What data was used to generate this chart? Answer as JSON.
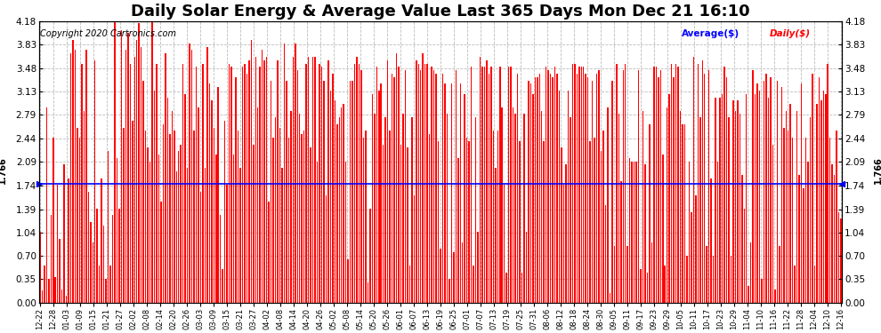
{
  "title": "Daily Solar Energy & Average Value Last 365 Days Mon Dec 21 16:10",
  "copyright": "Copyright 2020 Cartronics.com",
  "average_label": "Average($)",
  "daily_label": "Daily($)",
  "average_value": 1.766,
  "average_color": "#0000ff",
  "bar_color": "#ff0000",
  "ylim": [
    0.0,
    4.18
  ],
  "yticks": [
    0.0,
    0.35,
    0.7,
    1.04,
    1.39,
    1.74,
    2.09,
    2.44,
    2.79,
    3.13,
    3.48,
    3.83,
    4.18
  ],
  "background_color": "#ffffff",
  "grid_color": "#aaaaaa",
  "title_fontsize": 13,
  "copyright_fontsize": 7,
  "x_labels": [
    "12-22",
    "12-28",
    "01-03",
    "01-09",
    "01-15",
    "01-21",
    "01-27",
    "02-02",
    "02-08",
    "02-14",
    "02-20",
    "02-26",
    "03-03",
    "03-09",
    "03-15",
    "03-21",
    "03-27",
    "04-02",
    "04-08",
    "04-14",
    "04-20",
    "04-26",
    "05-02",
    "05-08",
    "05-14",
    "05-20",
    "05-26",
    "06-01",
    "06-07",
    "06-13",
    "06-19",
    "06-25",
    "07-01",
    "07-07",
    "07-13",
    "07-19",
    "07-25",
    "07-31",
    "08-06",
    "08-12",
    "08-18",
    "08-24",
    "08-30",
    "09-05",
    "09-11",
    "09-17",
    "09-23",
    "09-29",
    "10-05",
    "10-11",
    "10-17",
    "10-23",
    "10-29",
    "11-04",
    "11-10",
    "11-16",
    "11-22",
    "11-28",
    "12-04",
    "12-10",
    "12-16"
  ],
  "bar_values": [
    1.05,
    0.18,
    0.55,
    2.9,
    0.35,
    1.3,
    2.45,
    0.38,
    1.75,
    0.95,
    0.2,
    2.05,
    0.1,
    1.85,
    3.7,
    3.9,
    3.75,
    2.6,
    2.45,
    3.55,
    2.85,
    3.75,
    1.65,
    1.2,
    0.9,
    3.6,
    1.4,
    0.55,
    1.85,
    1.15,
    0.35,
    2.25,
    0.55,
    1.3,
    4.18,
    2.15,
    1.4,
    4.05,
    2.6,
    3.75,
    4.0,
    3.55,
    2.7,
    3.65,
    3.9,
    4.15,
    3.8,
    3.3,
    2.55,
    2.3,
    2.1,
    4.2,
    3.15,
    3.55,
    2.2,
    1.5,
    2.65,
    3.7,
    3.05,
    2.5,
    2.85,
    2.55,
    1.95,
    2.25,
    2.35,
    3.55,
    3.1,
    2.0,
    3.85,
    3.75,
    2.55,
    3.5,
    2.9,
    1.65,
    3.55,
    2.0,
    3.8,
    3.25,
    3.0,
    2.6,
    2.2,
    3.2,
    1.3,
    0.5,
    2.7,
    1.75,
    3.55,
    3.5,
    2.2,
    3.35,
    2.55,
    2.0,
    3.5,
    3.55,
    3.4,
    3.6,
    3.9,
    2.35,
    3.65,
    2.9,
    3.5,
    3.75,
    3.6,
    3.65,
    1.5,
    3.3,
    2.45,
    2.75,
    3.6,
    2.6,
    2.0,
    3.85,
    3.3,
    2.45,
    2.85,
    3.65,
    3.85,
    3.45,
    2.8,
    2.5,
    2.55,
    3.55,
    3.65,
    2.3,
    3.65,
    3.65,
    2.1,
    3.55,
    3.5,
    3.3,
    1.6,
    3.6,
    3.15,
    3.4,
    3.0,
    2.65,
    2.75,
    2.9,
    2.95,
    2.1,
    0.65,
    3.3,
    3.3,
    3.55,
    3.65,
    3.55,
    3.45,
    2.45,
    2.55,
    0.3,
    1.4,
    3.1,
    2.8,
    3.5,
    3.15,
    3.25,
    2.35,
    2.75,
    3.6,
    2.55,
    3.4,
    3.35,
    3.7,
    3.5,
    2.35,
    2.8,
    3.45,
    2.3,
    0.55,
    2.75,
    1.6,
    3.6,
    3.55,
    3.45,
    3.7,
    3.55,
    3.55,
    2.5,
    3.5,
    3.45,
    3.4,
    2.4,
    0.8,
    3.4,
    3.25,
    2.8,
    0.35,
    3.25,
    0.75,
    3.45,
    2.15,
    3.25,
    0.9,
    3.1,
    2.45,
    2.4,
    3.5,
    0.55,
    2.75,
    1.05,
    3.65,
    3.5,
    3.5,
    3.6,
    3.4,
    3.5,
    2.55,
    2.0,
    2.55,
    3.5,
    2.9,
    1.75,
    0.45,
    3.5,
    3.5,
    2.9,
    2.8,
    3.4,
    2.4,
    0.45,
    2.8,
    1.05,
    3.3,
    3.25,
    3.1,
    3.35,
    3.35,
    3.4,
    2.85,
    2.4,
    3.5,
    3.45,
    3.4,
    3.35,
    3.5,
    3.4,
    3.15,
    2.3,
    1.75,
    2.05,
    3.15,
    2.75,
    3.55,
    3.55,
    3.4,
    3.5,
    3.5,
    3.5,
    3.4,
    3.35,
    2.4,
    3.3,
    2.45,
    3.4,
    3.45,
    2.25,
    2.55,
    1.45,
    2.9,
    0.15,
    3.3,
    0.85,
    3.55,
    2.8,
    1.8,
    3.45,
    3.55,
    0.85,
    2.15,
    2.1,
    2.1,
    2.1,
    3.45,
    0.5,
    2.85,
    2.05,
    0.45,
    2.65,
    0.9,
    3.5,
    3.5,
    3.35,
    3.45,
    2.2,
    0.55,
    2.9,
    3.1,
    3.55,
    3.35,
    3.55,
    3.5,
    2.85,
    2.65,
    2.65,
    0.7,
    2.1,
    1.35,
    3.65,
    1.6,
    3.55,
    2.75,
    3.6,
    3.4,
    0.85,
    3.45,
    1.85,
    0.7,
    3.05,
    2.1,
    3.05,
    3.1,
    3.5,
    3.35,
    2.75,
    0.7,
    3.0,
    2.85,
    3.0,
    2.8,
    1.9,
    1.4,
    3.1,
    0.25,
    0.9,
    3.45,
    3.1,
    3.25,
    3.15,
    0.35,
    3.3,
    3.4,
    3.05,
    3.35,
    2.35,
    0.2,
    3.3,
    0.85,
    3.2,
    2.6,
    2.85,
    2.55,
    2.95,
    2.45,
    0.55,
    2.85,
    1.9,
    3.25,
    1.7,
    2.45,
    2.1,
    2.75,
    3.4,
    0.55,
    2.95,
    3.35,
    3.0,
    3.15,
    3.1,
    3.55,
    2.45,
    2.05,
    1.9,
    2.55,
    1.35,
    1.25
  ]
}
